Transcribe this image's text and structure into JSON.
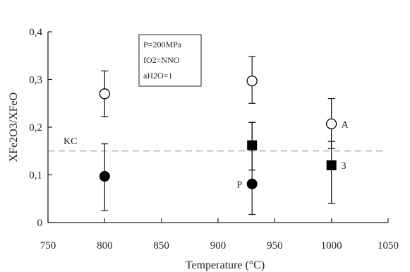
{
  "chart_data": {
    "type": "scatter",
    "xlabel": "Temperature (°C)",
    "ylabel": "XFe2O3/XFeO",
    "xlim": [
      750,
      1050
    ],
    "ylim": [
      0,
      0.4
    ],
    "x_ticks": [
      "750",
      "800",
      "850",
      "900",
      "950",
      "1000",
      "1050"
    ],
    "y_ticks": [
      "0",
      "0,1",
      "0,2",
      "0,3",
      "0,4"
    ],
    "grid": false,
    "conditions": [
      "P=200MPa",
      "fO2=NNO",
      "aH2O=1"
    ],
    "reference_line": {
      "label": "KC",
      "y": 0.15
    },
    "series": [
      {
        "marker": "open-circle",
        "points": [
          {
            "x": 800,
            "y": 0.27,
            "err_low": 0.222,
            "err_high": 0.318
          },
          {
            "x": 930,
            "y": 0.297,
            "err_low": 0.25,
            "err_high": 0.348
          },
          {
            "x": 1000,
            "y": 0.207,
            "err_low": 0.155,
            "err_high": 0.26
          }
        ]
      },
      {
        "marker": "filled-circle",
        "points": [
          {
            "x": 800,
            "y": 0.097,
            "err_low": 0.025,
            "err_high": 0.165
          },
          {
            "x": 930,
            "y": 0.081,
            "err_low": 0.017,
            "err_high": 0.21
          }
        ]
      },
      {
        "marker": "filled-square",
        "points": [
          {
            "x": 930,
            "y": 0.162,
            "err_low": 0.11,
            "err_high": 0.21
          },
          {
            "x": 1000,
            "y": 0.12,
            "err_low": 0.04,
            "err_high": 0.17
          }
        ]
      }
    ],
    "point_labels": [
      {
        "text": "A",
        "x": 1000,
        "y": 0.207
      },
      {
        "text": "P",
        "x": 930,
        "y": 0.081
      },
      {
        "text": "3",
        "x": 1000,
        "y": 0.12
      }
    ]
  }
}
